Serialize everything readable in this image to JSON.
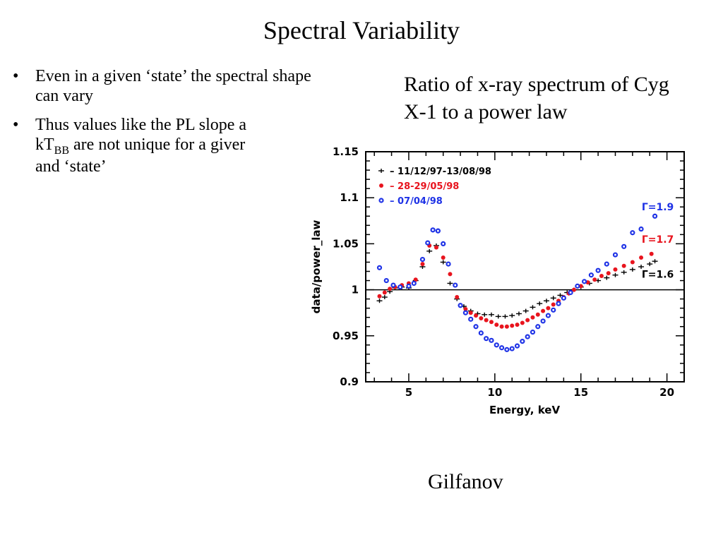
{
  "slide": {
    "title": "Spectral Variability",
    "bullets": [
      {
        "marker": "•",
        "pre": "Even in a given ‘state’ the spectral shape can vary",
        "sub": "",
        "post": ""
      },
      {
        "marker": "•",
        "pre": "Thus values like the PL slope a",
        "sub": "",
        "post": ""
      },
      {
        "marker": "",
        "pre": "kT",
        "sub": "BB",
        "post": " are not unique for a giver"
      },
      {
        "marker": "",
        "pre": "and ‘state’",
        "sub": "",
        "post": ""
      }
    ],
    "caption": "Ratio of x-ray spectrum of Cyg X-1 to a power law",
    "credit": "Gilfanov"
  },
  "colors": {
    "black": "#000000",
    "red": "#e8141e",
    "blue": "#1e32e6"
  },
  "chart_data": {
    "type": "scatter",
    "xlabel": "Energy, keV",
    "ylabel": "data/power_law",
    "xlim": [
      2.5,
      21
    ],
    "ylim": [
      0.9,
      1.15
    ],
    "xticks": [
      5,
      10,
      15,
      20
    ],
    "yticks": [
      0.9,
      0.95,
      1,
      1.05,
      1.1,
      1.15
    ],
    "ytick_labels": [
      "0.9",
      "0.95",
      "1",
      "1.05",
      "1.1",
      "1.15"
    ],
    "reference_line": 1,
    "legend_position": "top-left",
    "series": [
      {
        "name": "11/12/97-13/08/98",
        "color": "#000000",
        "marker": "cross",
        "annotation": "Γ=1.6",
        "x": [
          3.3,
          3.6,
          3.9,
          4.2,
          4.6,
          5.0,
          5.4,
          5.8,
          6.2,
          6.6,
          7.0,
          7.4,
          7.8,
          8.2,
          8.6,
          9.0,
          9.4,
          9.8,
          10.2,
          10.6,
          11.0,
          11.4,
          11.8,
          12.2,
          12.6,
          13.0,
          13.4,
          13.8,
          14.2,
          14.6,
          15.0,
          15.5,
          16.0,
          16.5,
          17.0,
          17.5,
          18.0,
          18.5,
          19.0,
          19.3
        ],
        "y": [
          0.988,
          0.992,
          0.998,
          1.002,
          1.003,
          1.002,
          1.01,
          1.025,
          1.042,
          1.048,
          1.03,
          1.007,
          0.99,
          0.982,
          0.977,
          0.974,
          0.973,
          0.973,
          0.971,
          0.971,
          0.972,
          0.974,
          0.977,
          0.981,
          0.985,
          0.988,
          0.991,
          0.994,
          0.997,
          1.0,
          1.003,
          1.007,
          1.01,
          1.013,
          1.016,
          1.019,
          1.022,
          1.025,
          1.028,
          1.031
        ]
      },
      {
        "name": "28-29/05/98",
        "color": "#e8141e",
        "marker": "dot",
        "annotation": "Γ=1.7",
        "x": [
          3.3,
          3.6,
          3.9,
          4.2,
          4.6,
          5.0,
          5.4,
          5.8,
          6.2,
          6.6,
          7.0,
          7.4,
          7.8,
          8.0,
          8.3,
          8.6,
          8.9,
          9.2,
          9.5,
          9.8,
          10.1,
          10.4,
          10.7,
          11.0,
          11.3,
          11.6,
          11.9,
          12.2,
          12.5,
          12.8,
          13.1,
          13.4,
          13.7,
          14.0,
          14.3,
          14.6,
          15.0,
          15.4,
          15.8,
          16.2,
          16.6,
          17.0,
          17.5,
          18.0,
          18.5,
          19.1
        ],
        "y": [
          0.993,
          0.997,
          1.001,
          1.003,
          1.005,
          1.007,
          1.011,
          1.028,
          1.048,
          1.046,
          1.035,
          1.017,
          0.992,
          0.983,
          0.979,
          0.975,
          0.972,
          0.969,
          0.967,
          0.965,
          0.962,
          0.96,
          0.96,
          0.961,
          0.962,
          0.964,
          0.967,
          0.97,
          0.973,
          0.977,
          0.98,
          0.984,
          0.988,
          0.992,
          0.996,
          1.0,
          1.004,
          1.008,
          1.011,
          1.015,
          1.018,
          1.022,
          1.026,
          1.03,
          1.035,
          1.039
        ]
      },
      {
        "name": "07/04/98",
        "color": "#1e32e6",
        "marker": "square",
        "annotation": "Γ=1.9",
        "x": [
          3.3,
          3.7,
          4.1,
          4.5,
          5.0,
          5.3,
          5.8,
          6.1,
          6.4,
          6.7,
          7.0,
          7.3,
          7.7,
          8.0,
          8.3,
          8.6,
          8.9,
          9.2,
          9.5,
          9.8,
          10.1,
          10.4,
          10.7,
          11.0,
          11.3,
          11.6,
          11.9,
          12.2,
          12.5,
          12.8,
          13.1,
          13.4,
          13.7,
          14.0,
          14.4,
          14.8,
          15.2,
          15.6,
          16.0,
          16.5,
          17.0,
          17.5,
          18.0,
          18.5,
          19.3
        ],
        "y": [
          1.024,
          1.01,
          1.005,
          1.003,
          1.004,
          1.007,
          1.033,
          1.051,
          1.065,
          1.064,
          1.05,
          1.028,
          1.005,
          0.983,
          0.975,
          0.968,
          0.96,
          0.953,
          0.947,
          0.945,
          0.94,
          0.937,
          0.935,
          0.936,
          0.939,
          0.944,
          0.949,
          0.954,
          0.96,
          0.966,
          0.972,
          0.978,
          0.985,
          0.991,
          0.997,
          1.004,
          1.009,
          1.016,
          1.021,
          1.028,
          1.038,
          1.047,
          1.062,
          1.066,
          1.08
        ]
      }
    ]
  }
}
